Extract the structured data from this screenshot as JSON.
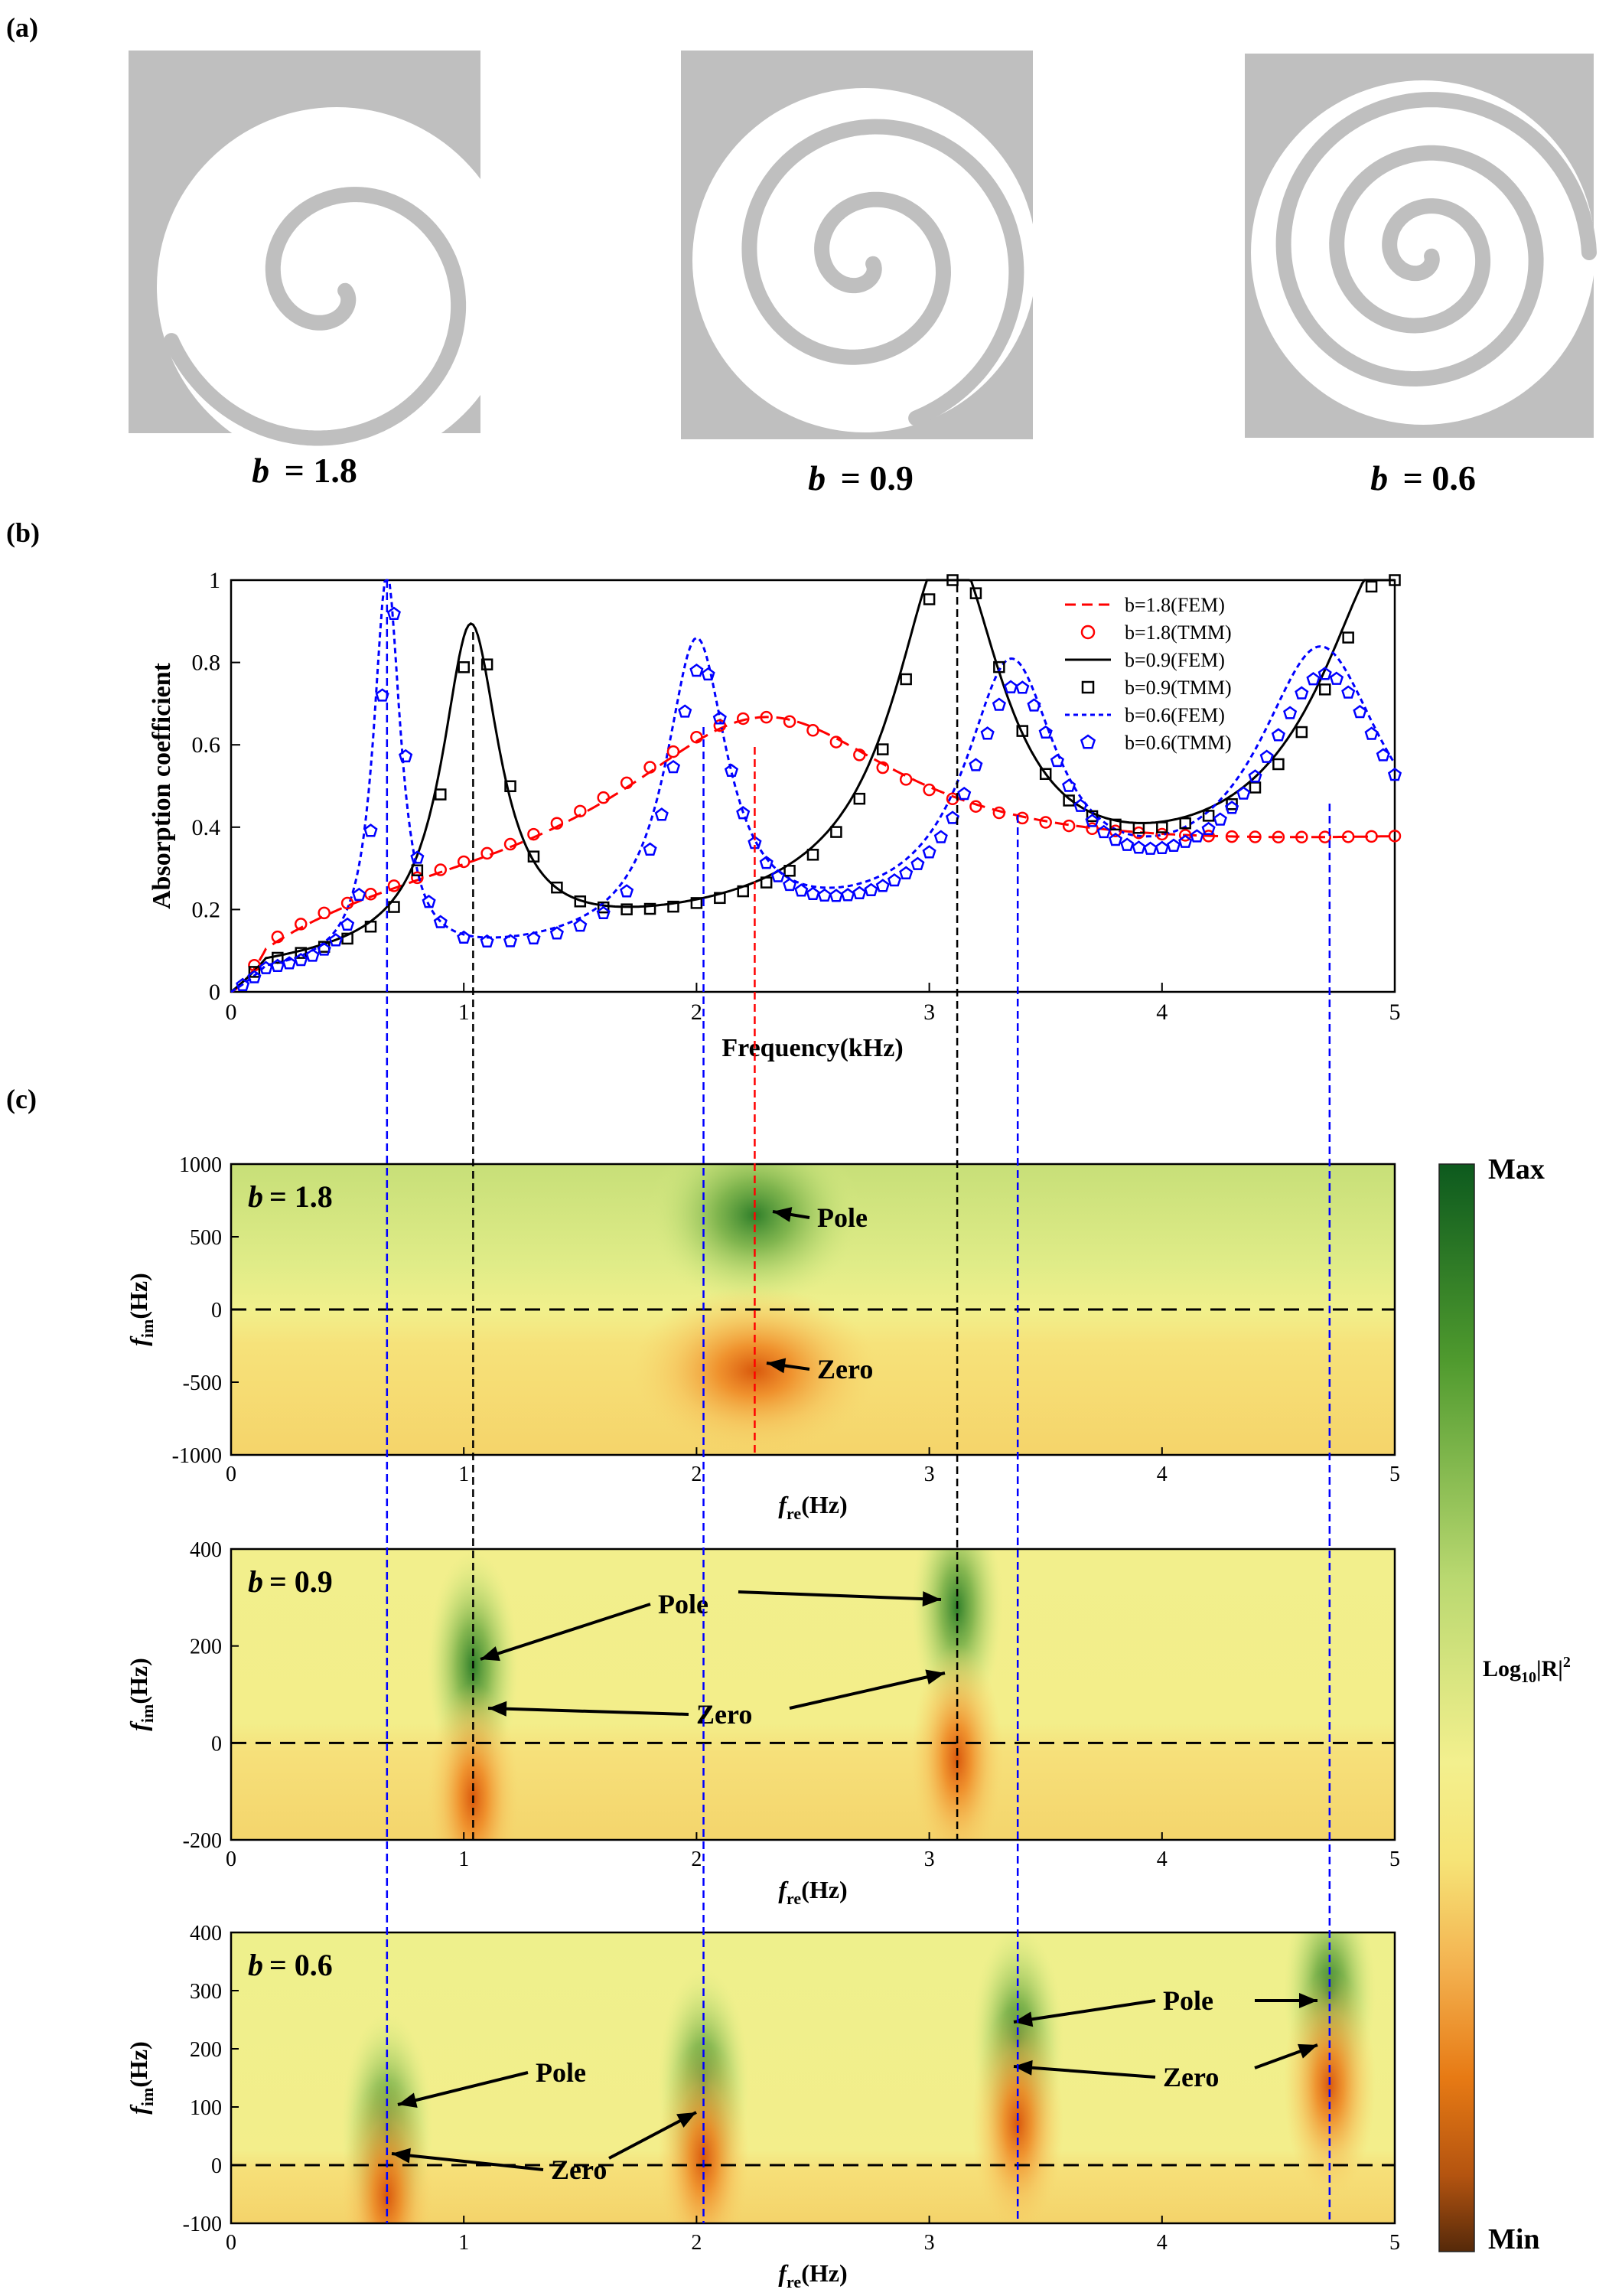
{
  "panels": {
    "a": "(a)",
    "b": "(b)",
    "c": "(c)"
  },
  "structures": [
    {
      "b_label": "b",
      "b_value": "= 1.8",
      "turns": 1.45
    },
    {
      "b_label": "b",
      "b_value": "= 0.9",
      "turns": 2.2
    },
    {
      "b_label": "b",
      "b_value": "= 0.6",
      "turns": 3.0
    }
  ],
  "absorption": {
    "ylabel": "Absorption coefficient",
    "xlabel": "Frequency(kHz)",
    "x_ticks": [
      "0",
      "1",
      "2",
      "3",
      "4",
      "5"
    ],
    "y_ticks": [
      "0",
      "0.2",
      "0.4",
      "0.6",
      "0.8",
      "1"
    ],
    "legend": [
      {
        "label": "b=1.8(FEM)",
        "color": "#ff0000",
        "style": "dashed"
      },
      {
        "label": "b=1.8(TMM)",
        "color": "#ff0000",
        "marker": "circle"
      },
      {
        "label": "b=0.9(FEM)",
        "color": "#000000",
        "style": "solid"
      },
      {
        "label": "b=0.9(TMM)",
        "color": "#000000",
        "marker": "square"
      },
      {
        "label": "b=0.6(FEM)",
        "color": "#0000ff",
        "style": "dotted"
      },
      {
        "label": "b=0.6(TMM)",
        "color": "#0000ff",
        "marker": "pentagon"
      }
    ]
  },
  "chart_data": [
    {
      "type": "line",
      "xlabel": "Frequency(kHz)",
      "ylabel": "Absorption coefficient",
      "xlim": [
        0,
        5
      ],
      "ylim": [
        0,
        1
      ],
      "legend_position": "top-right",
      "series": [
        {
          "name": "b=1.8(FEM)",
          "peaks": [
            {
              "f": 2.28,
              "alpha": 0.6
            }
          ],
          "baseline": 0.2,
          "end_value": 0.35
        },
        {
          "name": "b=1.8(TMM)",
          "peaks": [
            {
              "f": 2.3,
              "alpha": 0.6
            }
          ]
        },
        {
          "name": "b=0.9(FEM)",
          "peaks": [
            {
              "f": 1.03,
              "alpha": 0.88
            },
            {
              "f": 3.08,
              "alpha": 0.99
            },
            {
              "f": 5.0,
              "alpha": 0.98
            }
          ],
          "min": 0.12
        },
        {
          "name": "b=0.9(TMM)",
          "peaks": [
            {
              "f": 1.0,
              "alpha": 0.88
            },
            {
              "f": 3.1,
              "alpha": 0.96
            }
          ]
        },
        {
          "name": "b=0.6(FEM)",
          "peaks": [
            {
              "f": 0.67,
              "alpha": 1.0
            },
            {
              "f": 2.0,
              "alpha": 0.86
            },
            {
              "f": 3.35,
              "alpha": 0.76
            },
            {
              "f": 4.68,
              "alpha": 0.78
            }
          ]
        },
        {
          "name": "b=0.6(TMM)",
          "peaks": [
            {
              "f": 0.67,
              "alpha": 0.9
            },
            {
              "f": 2.03,
              "alpha": 0.82
            },
            {
              "f": 3.37,
              "alpha": 0.7
            },
            {
              "f": 4.72,
              "alpha": 0.65
            }
          ]
        }
      ]
    },
    {
      "type": "heatmap",
      "title": "b = 1.8",
      "xlabel": "f_re(Hz)",
      "ylabel": "f_im(Hz)",
      "xlim": [
        0,
        5
      ],
      "ylim": [
        -1000,
        1000
      ],
      "y_ticks": [
        "1000",
        "500",
        "0",
        "-500",
        "-1000"
      ],
      "poles": [
        {
          "f_re": 2.25,
          "f_im": 650
        }
      ],
      "zeros": [
        {
          "f_re": 2.25,
          "f_im": -420
        }
      ]
    },
    {
      "type": "heatmap",
      "title": "b = 0.9",
      "xlabel": "f_re(Hz)",
      "ylabel": "f_im(Hz)",
      "xlim": [
        0,
        5
      ],
      "ylim": [
        -200,
        400
      ],
      "y_ticks": [
        "400",
        "200",
        "0",
        "-200"
      ],
      "poles": [
        {
          "f_re": 1.04,
          "f_im": 160
        },
        {
          "f_re": 3.12,
          "f_im": 280
        }
      ],
      "zeros": [
        {
          "f_re": 1.04,
          "f_im": -50
        },
        {
          "f_re": 3.12,
          "f_im": 30
        }
      ]
    },
    {
      "type": "heatmap",
      "title": "b = 0.6",
      "xlabel": "f_re(Hz)",
      "ylabel": "f_im(Hz)",
      "xlim": [
        0,
        5
      ],
      "ylim": [
        -100,
        400
      ],
      "y_ticks": [
        "400",
        "300",
        "200",
        "100",
        "0",
        "-100"
      ],
      "poles": [
        {
          "f_re": 0.67,
          "f_im": 65
        },
        {
          "f_re": 2.03,
          "f_im": 140
        },
        {
          "f_re": 3.38,
          "f_im": 215
        },
        {
          "f_re": 4.72,
          "f_im": 300
        }
      ],
      "zeros": [
        {
          "f_re": 0.67,
          "f_im": 0
        },
        {
          "f_re": 2.03,
          "f_im": 65
        },
        {
          "f_re": 3.38,
          "f_im": 125
        },
        {
          "f_re": 4.72,
          "f_im": 190
        }
      ]
    }
  ],
  "heatmaps": [
    {
      "title_b": "b",
      "title_val": "= 1.8",
      "ylabel_main": "f",
      "ylabel_sub": "im",
      "ylabel_unit": "(Hz)",
      "xlabel_main": "f",
      "xlabel_sub": "re",
      "xlabel_unit": "(Hz)",
      "x_ticks": [
        "0",
        "1",
        "2",
        "3",
        "4",
        "5"
      ],
      "y_ticks": [
        "1000",
        "500",
        "0",
        "-500",
        "-1000"
      ],
      "labels": [
        {
          "text": "Pole"
        },
        {
          "text": "Zero"
        }
      ]
    },
    {
      "title_b": "b",
      "title_val": "= 0.9",
      "ylabel_main": "f",
      "ylabel_sub": "im",
      "ylabel_unit": "(Hz)",
      "xlabel_main": "f",
      "xlabel_sub": "re",
      "xlabel_unit": "(Hz)",
      "x_ticks": [
        "0",
        "1",
        "2",
        "3",
        "4",
        "5"
      ],
      "y_ticks": [
        "400",
        "200",
        "0",
        "-200"
      ],
      "labels": [
        {
          "text": "Pole"
        },
        {
          "text": "Zero"
        }
      ]
    },
    {
      "title_b": "b",
      "title_val": "= 0.6",
      "ylabel_main": "f",
      "ylabel_sub": "im",
      "ylabel_unit": "(Hz)",
      "xlabel_main": "f",
      "xlabel_sub": "re",
      "xlabel_unit": "(Hz)",
      "x_ticks": [
        "0",
        "1",
        "2",
        "3",
        "4",
        "5"
      ],
      "y_ticks": [
        "400",
        "300",
        "200",
        "100",
        "0",
        "-100"
      ],
      "labels": [
        {
          "text": "Pole"
        },
        {
          "text": "Pole"
        },
        {
          "text": "Zero"
        },
        {
          "text": "Zero"
        }
      ]
    }
  ],
  "colorbar": {
    "max_label": "Max",
    "min_label": "Min",
    "label_main": "Log",
    "label_sub": "10",
    "label_rest": "|R|",
    "label_sup": "2",
    "colors": [
      "#0d5a1e",
      "#4f9a2e",
      "#b9d870",
      "#f3f08e",
      "#f6e477",
      "#f3b14f",
      "#e77a14",
      "#b45410",
      "#55290a"
    ]
  },
  "guide_colors": {
    "b18": "#ff0000",
    "b09": "#000000",
    "b06": "#0000ff"
  }
}
